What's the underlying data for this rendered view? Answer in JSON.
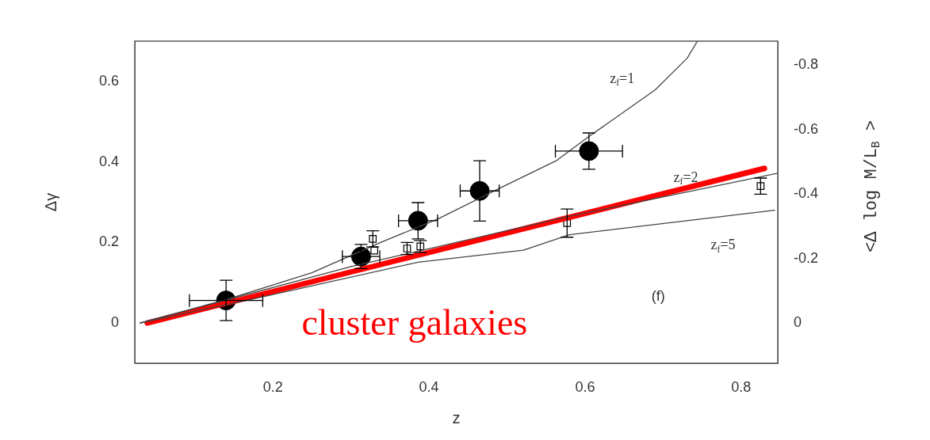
{
  "chart_data": {
    "type": "scatter",
    "xlabel": "z",
    "ylabel": "Δγ",
    "y2label": "<Δ log M/L$_{B}$ >",
    "xlim": [
      0.023,
      0.847
    ],
    "xticks": [
      0.2,
      0.4,
      0.6,
      0.8
    ],
    "ylim": [
      -0.1,
      0.7
    ],
    "yticks": [
      0,
      0.2,
      0.4,
      0.6
    ],
    "y2lim": [
      0.125,
      -0.875
    ],
    "y2ticks": [
      -0.8,
      -0.6,
      -0.4,
      -0.2,
      0
    ],
    "grid": false,
    "legend": false,
    "series": [
      {
        "type": "line",
        "color": "#444444",
        "marker": "none",
        "x": [
          0.03,
          0.14,
          0.25,
          0.338,
          0.411,
          0.49,
          0.564,
          0.605,
          0.69,
          0.731,
          0.744
        ],
        "values": [
          0,
          0.058,
          0.125,
          0.2,
          0.258,
          0.334,
          0.404,
          0.463,
          0.579,
          0.658,
          0.7
        ]
      },
      {
        "type": "line",
        "color": "#444444",
        "marker": "none",
        "x": [
          0.03,
          0.3,
          0.58,
          0.847
        ],
        "values": [
          0,
          0.14,
          0.265,
          0.372
        ]
      },
      {
        "type": "line",
        "color": "#444444",
        "marker": "none",
        "x": [
          0.03,
          0.189,
          0.386,
          0.521,
          0.58,
          0.843
        ],
        "values": [
          0,
          0.066,
          0.151,
          0.181,
          0.219,
          0.28
        ]
      },
      {
        "type": "line",
        "name": "cluster galaxies",
        "color": "#ff0000",
        "marker": "none",
        "x": [
          0.039,
          0.83
        ],
        "values": [
          0,
          0.384
        ]
      },
      {
        "type": "scatter",
        "color": "#000000",
        "marker": "circle",
        "x": [
          0.14,
          0.313,
          0.386,
          0.465,
          0.605
        ],
        "values": [
          0.056,
          0.165,
          0.254,
          0.328,
          0.427
        ],
        "errors": [
          0.05,
          0.03,
          0.045,
          0.075,
          0.045
        ],
        "xerrors": [
          0.047,
          0.024,
          0.025,
          0.025,
          0.043
        ]
      },
      {
        "type": "scatter",
        "color": "#000000",
        "marker": "square",
        "x": [
          0.328,
          0.33,
          0.372,
          0.389,
          0.577,
          0.825
        ],
        "values": [
          0.209,
          0.18,
          0.185,
          0.19,
          0.248,
          0.34
        ],
        "errors": [
          0.02,
          null,
          0.015,
          0.015,
          0.035,
          0.02
        ]
      }
    ],
    "annotations": [
      "z$_{f}$=1",
      "z$_{f}$=2",
      "z$_{f}$=5",
      "(f)"
    ]
  }
}
